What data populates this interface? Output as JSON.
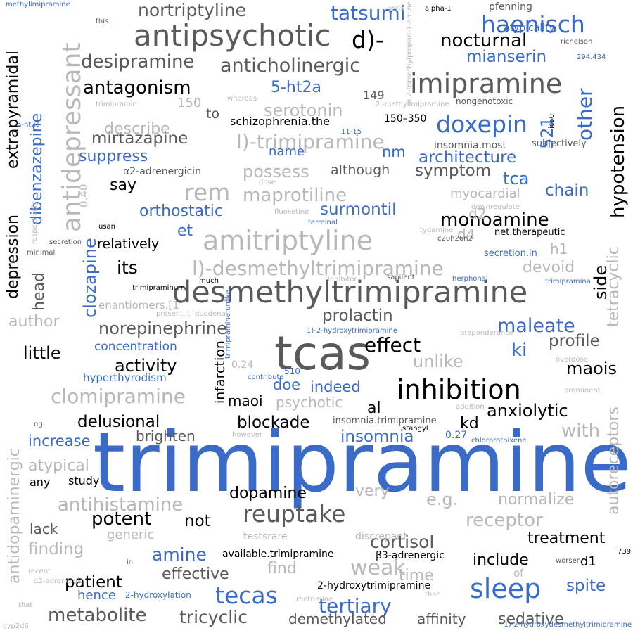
{
  "palette": {
    "black": "#000000",
    "dark": "#5a5a5a",
    "light": "#b8b8b8",
    "blue": "#3a6bc9"
  },
  "words": [
    "trimipramine",
    "tcas",
    "desmethyltrimipramine",
    "antipsychotic",
    "imipramine",
    "amitriptyline",
    "inhibition",
    "antidepressant",
    "rem",
    "reuptake",
    "sleep",
    "tecas",
    "d)-",
    "doxepin",
    "haenisch",
    "l)-desmethyltrimipramine",
    "l)-trimipramine",
    "clomipramine",
    "anticholinergic",
    "nocturnal",
    "desipramine",
    "antagonism",
    "nortriptyline",
    "tatsumi",
    "effect",
    "maleate",
    "hypotension",
    "tertiary",
    "antihistamine",
    "metabolite",
    "tricyclic",
    "maprotiline",
    "monoamine",
    "norepinephrine",
    "cortisol",
    "receptor",
    "weak",
    "architecture",
    "mirtazapine",
    "serotonin",
    "possess",
    "surmontil",
    "orthostatic",
    "prolactin",
    "blockade",
    "dopamine",
    "potent",
    "patient",
    "effective",
    "treatment",
    "include",
    "sedative",
    "affinity",
    "demethylated",
    "anxiolytic",
    "profile",
    "insomnia",
    "delusional",
    "activity",
    "little",
    "symptom",
    "mianserin",
    "5-ht2a",
    "suppress",
    "describe",
    "say",
    "its",
    "other",
    "tca",
    "chain",
    "devoid",
    "side",
    "tetracyclic",
    "autoreceptors",
    "ki",
    "unlike",
    "maois",
    "normalize",
    "e.g.",
    "very",
    "finding",
    "atypical",
    "brighten",
    "increase",
    "maoi",
    "doe",
    "indeed",
    "psychotic",
    "al",
    "kd",
    "with",
    "not",
    "lack",
    "generic",
    "find",
    "time",
    "spite",
    "d1",
    "hence",
    "amine",
    "dibenzazepine",
    "clozapine",
    "depression",
    "extrapyramidal",
    "head",
    "author",
    "antidopaminergic",
    "infarction",
    "myocardial",
    "d2",
    "d4",
    "h1",
    "et",
    "relatively",
    "nm",
    "name",
    "although",
    "to",
    "schizophrenia.the",
    "150",
    "149",
    "150–350",
    "concentration",
    "hyperthyrodism",
    "study",
    "any",
    "2-hydroxytrimipramine",
    "2-hydroxylation",
    "available.trimipramine",
    "β3-adrenergic",
    "discrepant",
    "testsrare",
    "secretion.in",
    "net.therapeutic",
    "insomnia.most",
    "subjectively",
    "nongenotoxic",
    "atypicality",
    "pfenning",
    "alpha-1",
    "ssris",
    "richelson",
    "294.434",
    "α2-adrenergicin",
    "0.40",
    "0.24",
    "0.27",
    "510",
    "insomnia.trimipramine",
    "trimipramine.unlike",
    "c20h26n2",
    "tydamine",
    "terminal",
    "fluoxetine",
    "sapilent",
    "herphonal",
    "trimipramina",
    "inhibitor",
    "much",
    "trimipraminum",
    "usan",
    "respectively",
    "secretion",
    "minimal",
    "downregulate",
    "dose",
    "enantiomers.[1",
    "present.it",
    "duodenal",
    "1)-2-hydroxytrimipramine",
    "preponderance",
    "overdose",
    "prominent",
    "addition",
    "stangyl",
    "however",
    "chlorprothixene",
    "ng",
    "contribute",
    "in",
    "recent",
    "α2-adrenergic",
    "that",
    "rhotrimine",
    "than",
    "cyp2d6",
    "1)-2-hydroxydesmethyltrimipramine",
    "worsen",
    "739",
    "of",
    "11-15",
    "5-ht2c",
    "this",
    "whereas",
    "trimipramin",
    "2'-methylimipramine",
    "methylimipramine",
    "n,2-trimethylpropan-1-amine",
    "ic50",
    "521",
    "nm"
  ]
}
